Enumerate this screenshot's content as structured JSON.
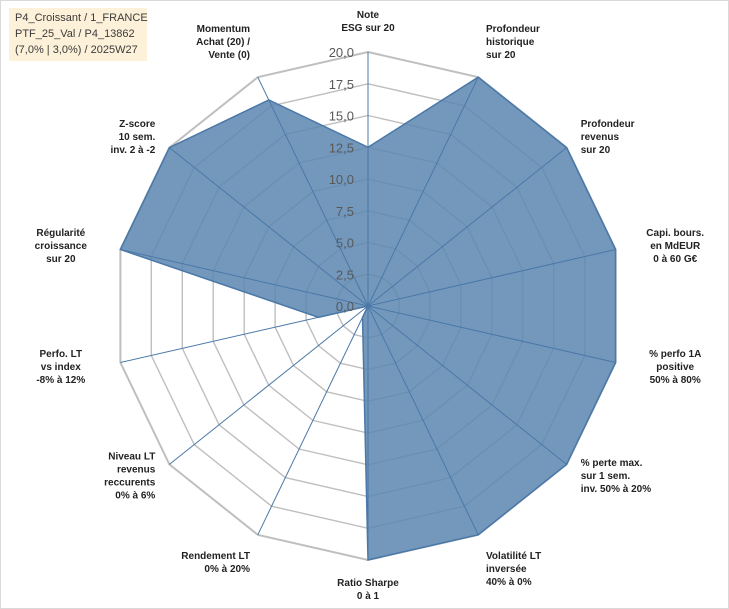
{
  "info_box": {
    "line1": "P4_Croissant / 1_FRANCE",
    "line2": "PTF_25_Val / P4_13862",
    "line3": "(7,0% | 3,0%) / 2025W27"
  },
  "chart_data": {
    "type": "radar",
    "title": "",
    "rmax": 20,
    "ticks": [
      "0,0",
      "2,5",
      "5,0",
      "7,5",
      "10,0",
      "12,5",
      "15,0",
      "17,5",
      "20,0"
    ],
    "tick_values": [
      0,
      2.5,
      5,
      7.5,
      10,
      12.5,
      15,
      17.5,
      20
    ],
    "categories": [
      [
        "Note",
        "ESG sur 20"
      ],
      [
        "Profondeur",
        "historique",
        "sur 20"
      ],
      [
        "Profondeur",
        "revenus",
        "sur 20"
      ],
      [
        "Capi. bours.",
        "en MdEUR",
        "0 à 60 G€"
      ],
      [
        "% perfo 1A",
        "positive",
        "50% à 80%"
      ],
      [
        "% perte max.",
        "sur 1 sem.",
        "inv. 50% à 20%"
      ],
      [
        "Volatilité LT",
        "inversée",
        "40% à 0%"
      ],
      [
        "Ratio Sharpe",
        "0 à 1"
      ],
      [
        "Rendement LT",
        "0% à 20%"
      ],
      [
        "Niveau LT",
        "revenus",
        "reccurents",
        "0% à 6%"
      ],
      [
        "Perfo. LT",
        "vs index",
        "-8% à 12%"
      ],
      [
        "Régularité",
        "croissance",
        "sur 20"
      ],
      [
        "Z-score",
        "10 sem.",
        "inv. 2 à -2"
      ],
      [
        "Momentum",
        "Achat (20) /",
        "Vente (0)"
      ]
    ],
    "series": [
      {
        "values": [
          12.5,
          20,
          20,
          20,
          20,
          20,
          20,
          20,
          1,
          0,
          4,
          20,
          20,
          18
        ],
        "color": "#4a78a8"
      }
    ],
    "colors": {
      "fill": "#5b86b0",
      "stroke": "#4a78a8",
      "grid": "#bfbfbf",
      "spoke": "#4a78a8"
    }
  }
}
